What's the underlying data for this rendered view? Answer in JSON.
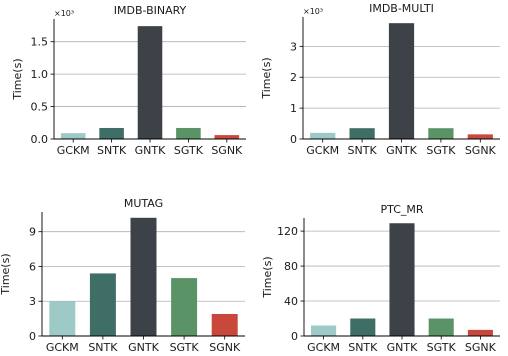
{
  "chart_data": [
    {
      "type": "bar",
      "title": "IMDB-BINARY",
      "ylabel": "Time(s)",
      "multiplier": "×10³",
      "categories": [
        "GCKM",
        "SNTK",
        "GNTK",
        "SGTK",
        "SGNK"
      ],
      "values": [
        0.09,
        0.17,
        1.74,
        0.17,
        0.06
      ],
      "ylim": [
        0,
        1.85
      ],
      "yticks": [
        0.0,
        0.5,
        1.0,
        1.5
      ],
      "ytick_labels": [
        "0.0",
        "0.5",
        "1.0",
        "1.5"
      ],
      "grid": true
    },
    {
      "type": "bar",
      "title": "IMDB-MULTI",
      "ylabel": "Time(s)",
      "multiplier": "×10³",
      "categories": [
        "GCKM",
        "SNTK",
        "GNTK",
        "SGTK",
        "SGNK"
      ],
      "values": [
        0.2,
        0.35,
        3.75,
        0.35,
        0.15
      ],
      "ylim": [
        0,
        3.95
      ],
      "yticks": [
        0,
        1,
        2,
        3
      ],
      "ytick_labels": [
        "0",
        "1",
        "2",
        "3"
      ],
      "grid": true
    },
    {
      "type": "bar",
      "title": "MUTAG",
      "ylabel": "Time(s)",
      "multiplier": "",
      "categories": [
        "GCKM",
        "SNTK",
        "GNTK",
        "SGTK",
        "SGNK"
      ],
      "values": [
        3.0,
        5.4,
        10.2,
        5.0,
        1.9
      ],
      "ylim": [
        0,
        10.7
      ],
      "yticks": [
        0,
        3,
        6,
        9
      ],
      "ytick_labels": [
        "0",
        "3",
        "6",
        "9"
      ],
      "grid": true
    },
    {
      "type": "bar",
      "title": "PTC_MR",
      "ylabel": "Time(s)",
      "multiplier": "",
      "categories": [
        "GCKM",
        "SNTK",
        "GNTK",
        "SGTK",
        "SGNK"
      ],
      "values": [
        12,
        20,
        129,
        20,
        7
      ],
      "ylim": [
        0,
        135
      ],
      "yticks": [
        0,
        40,
        80,
        120
      ],
      "ytick_labels": [
        "0",
        "40",
        "80",
        "120"
      ],
      "grid": true
    }
  ],
  "colors": {
    "GCKM": "#9dc9c7",
    "SNTK": "#3f6e66",
    "GNTK": "#3c4247",
    "SGTK": "#5a9466",
    "SGNK": "#c8493c"
  }
}
